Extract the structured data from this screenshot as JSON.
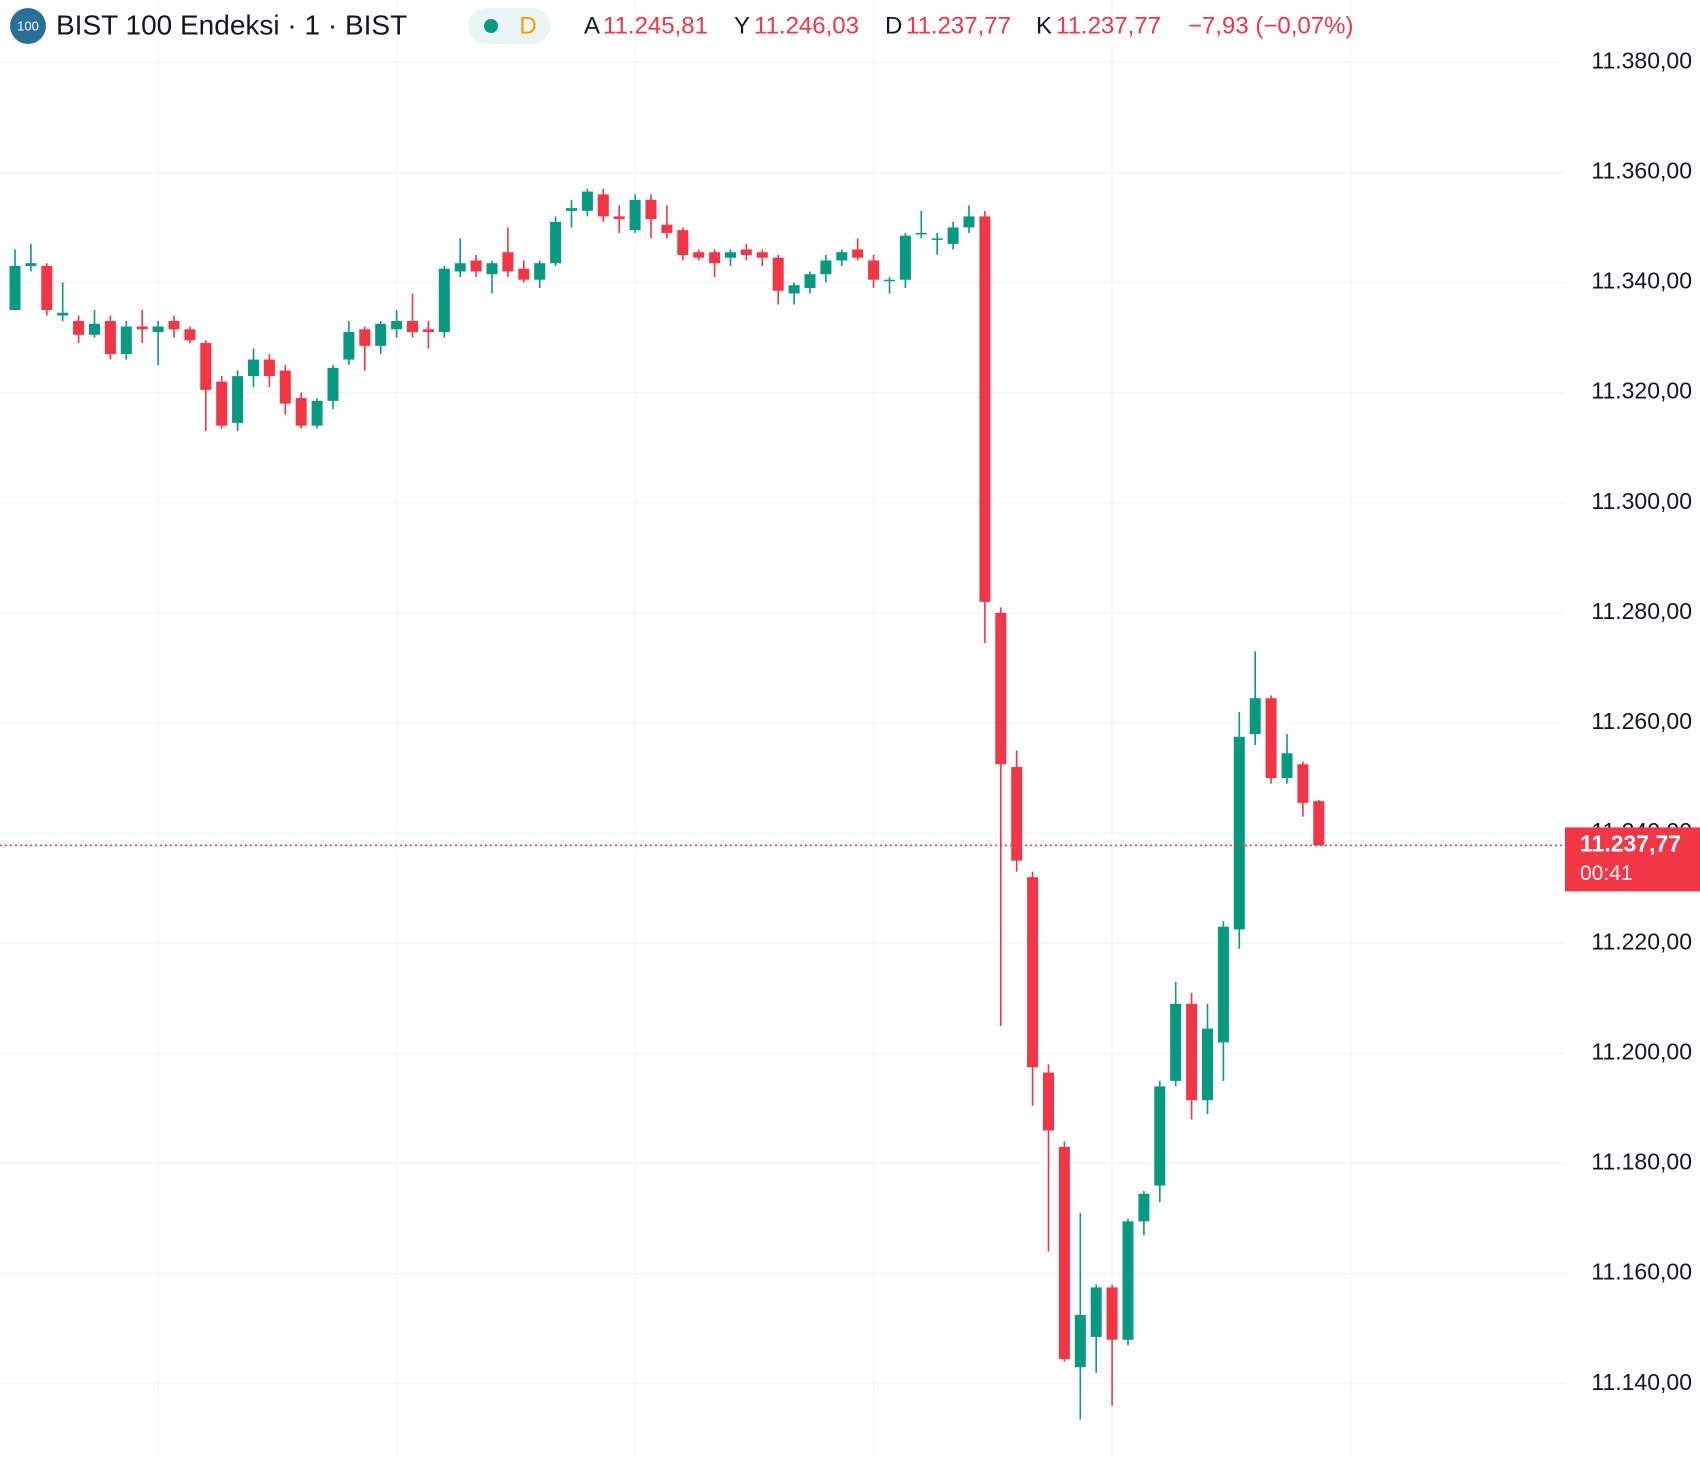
{
  "chart_data": {
    "type": "candlestick",
    "header": {
      "icon": "100",
      "title": "BIST 100 Endeksi · 1 · BIST",
      "interval_badge": "D",
      "open_key": "A",
      "open": "11.245,81",
      "high_key": "Y",
      "high": "11.246,03",
      "low_key": "D",
      "low": "11.237,77",
      "close_key": "K",
      "close": "11.237,77",
      "change": "−7,93 (−0,07%)"
    },
    "last_price_label": "11.237,77",
    "countdown": "00:41",
    "up_color": "#089981",
    "down_color": "#f23645",
    "open": [
      11335,
      11343,
      11343,
      11334,
      11333,
      11330.5,
      11333,
      11327,
      11332,
      11331,
      11333,
      11331.5,
      11329,
      11322,
      11314.5,
      11323,
      11326,
      11324,
      11319,
      11314,
      11318.5,
      11326,
      11331.5,
      11328.5,
      11331.5,
      11333,
      11331.5,
      11331,
      11342,
      11344,
      11341.5,
      11345.5,
      11342.5,
      11340.5,
      11343.5,
      11353,
      11353,
      11356,
      11352,
      11349.5,
      11355,
      11350.5,
      11349.5,
      11345.5,
      11345.5,
      11344.5,
      11346,
      11345.5,
      11344.5,
      11338,
      11339,
      11341.5,
      11344,
      11346,
      11344,
      11340.5,
      11340.5,
      11349,
      11348,
      11347,
      11350,
      11352,
      11280,
      11252,
      11232,
      11196.5,
      11183,
      11143,
      11148.5,
      11157.5,
      11148,
      11169.5,
      11176,
      11195,
      11209,
      11191.5,
      11202,
      11222.5,
      11258,
      11264.5,
      11250,
      11252.5,
      11245.81
    ],
    "high": [
      11346,
      11347,
      11343.5,
      11340,
      11334,
      11335,
      11334,
      11333,
      11335,
      11333,
      11334,
      11332,
      11329.5,
      11323,
      11324,
      11328,
      11327,
      11325,
      11320,
      11319,
      11325,
      11333,
      11332,
      11333,
      11335,
      11338,
      11333,
      11343,
      11348,
      11345,
      11344,
      11350,
      11344,
      11344,
      11352,
      11355,
      11357,
      11357,
      11354,
      11356,
      11356,
      11354,
      11350,
      11346,
      11346,
      11346,
      11347,
      11346,
      11345,
      11340,
      11342,
      11345,
      11346,
      11348,
      11345,
      11341,
      11349,
      11353,
      11349,
      11351,
      11354,
      11353,
      11281,
      11255,
      11233,
      11198,
      11184,
      11171,
      11158,
      11158,
      11170,
      11175,
      11195,
      11213,
      11211,
      11209,
      11224,
      11262,
      11273,
      11265,
      11258,
      11253,
      11246.03
    ],
    "low": [
      11335,
      11342,
      11334,
      11333,
      11329,
      11330,
      11326,
      11326,
      11329,
      11325,
      11330,
      11329,
      11313,
      11313.5,
      11313,
      11321,
      11321,
      11316,
      11313.5,
      11313.5,
      11317,
      11325,
      11324,
      11327,
      11330,
      11330,
      11328,
      11330,
      11341,
      11341,
      11338,
      11341,
      11340,
      11339,
      11343,
      11350,
      11352,
      11351,
      11349,
      11349,
      11348,
      11348,
      11344,
      11344,
      11341,
      11343,
      11344,
      11343,
      11336,
      11336,
      11338,
      11340,
      11343,
      11344,
      11339,
      11338,
      11339,
      11348,
      11345,
      11346,
      11349,
      11274.5,
      11205,
      11233,
      11190.5,
      11164,
      11144,
      11133.5,
      11142,
      11136,
      11147,
      11167,
      11173,
      11194,
      11188,
      11189,
      11195,
      11219,
      11256,
      11249,
      11249,
      11243,
      11237.77
    ],
    "close": [
      11343,
      11343.5,
      11335,
      11334.5,
      11330.5,
      11332.5,
      11327,
      11332,
      11331.5,
      11332,
      11331.5,
      11329.5,
      11320.5,
      11314,
      11323,
      11326,
      11323,
      11318,
      11314,
      11318.5,
      11324.5,
      11331,
      11328.5,
      11332.5,
      11333,
      11331,
      11331,
      11342.5,
      11343.5,
      11342,
      11343.5,
      11342,
      11340.5,
      11343.5,
      11351,
      11353.5,
      11356.5,
      11352,
      11351.5,
      11355,
      11351.5,
      11349,
      11345,
      11344.5,
      11343.5,
      11345.5,
      11345,
      11344.5,
      11338.5,
      11339.5,
      11341.5,
      11344,
      11345.5,
      11344.5,
      11340.5,
      11340.5,
      11348.5,
      11349,
      11348,
      11350,
      11352,
      11282,
      11252.5,
      11235,
      11197.5,
      11186,
      11144.5,
      11152.5,
      11157.5,
      11148,
      11169.5,
      11174.5,
      11194,
      11209,
      11191.5,
      11204.5,
      11223,
      11257.5,
      11264.5,
      11250,
      11254.5,
      11245.5,
      11237.77
    ],
    "ylim": [
      11126.7,
      11391.3
    ],
    "yticks": [
      {
        "value": 11140,
        "label": "11.140,00"
      },
      {
        "value": 11160,
        "label": "11.160,00"
      },
      {
        "value": 11180,
        "label": "11.180,00"
      },
      {
        "value": 11200,
        "label": "11.200,00"
      },
      {
        "value": 11220,
        "label": "11.220,00"
      },
      {
        "value": 11240,
        "label": "11.240,00"
      },
      {
        "value": 11260,
        "label": "11.260,00"
      },
      {
        "value": 11280,
        "label": "11.280,00"
      },
      {
        "value": 11300,
        "label": "11.300,00"
      },
      {
        "value": 11320,
        "label": "11.320,00"
      },
      {
        "value": 11340,
        "label": "11.340,00"
      },
      {
        "value": 11360,
        "label": "11.360,00"
      },
      {
        "value": 11380,
        "label": "11.380,00"
      }
    ],
    "grid": true
  }
}
